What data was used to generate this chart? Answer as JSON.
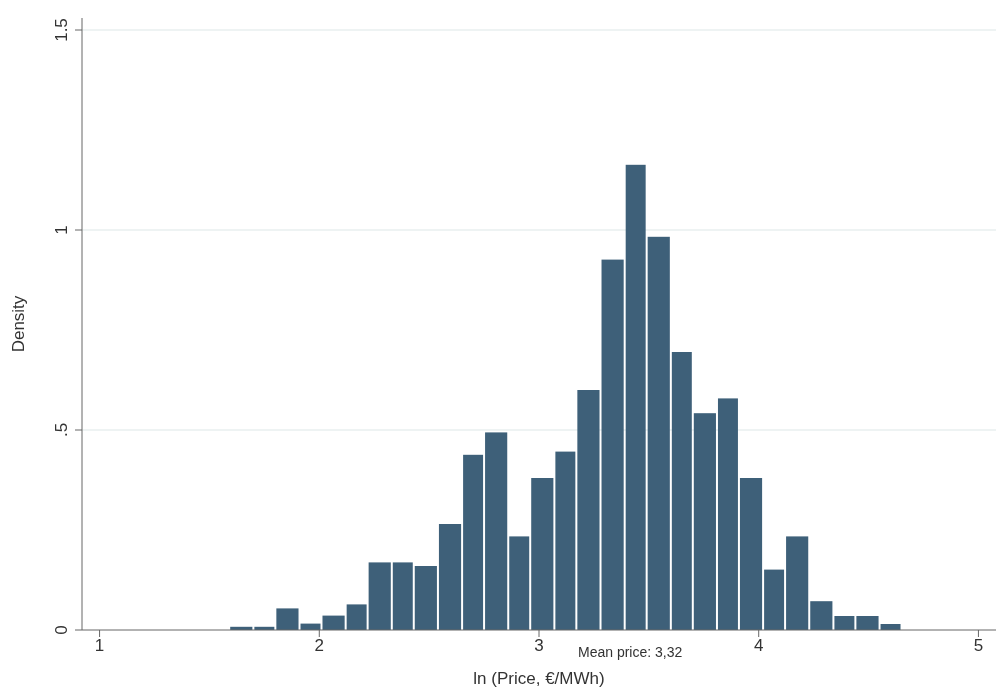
{
  "chart_data": {
    "type": "histogram",
    "xlabel": "ln (Price, €/MWh)",
    "ylabel": "Density",
    "color": "#3e6079",
    "bins": [
      1.59,
      1.7,
      1.8,
      1.91,
      2.01,
      2.12,
      2.22,
      2.33,
      2.43,
      2.54,
      2.65,
      2.75,
      2.86,
      2.96,
      3.07,
      3.17,
      3.28,
      3.39,
      3.49,
      3.6,
      3.7,
      3.81,
      3.91,
      4.02,
      4.12,
      4.23,
      4.34,
      4.44,
      4.55,
      4.65
    ],
    "values": [
      0.008,
      0.008,
      0.054,
      0.016,
      0.036,
      0.064,
      0.169,
      0.169,
      0.16,
      0.265,
      0.438,
      0.494,
      0.234,
      0.38,
      0.446,
      0.6,
      0.926,
      1.163,
      0.983,
      0.695,
      0.542,
      0.579,
      0.38,
      0.151,
      0.234,
      0.072,
      0.035,
      0.035,
      0.015
    ],
    "xlim": [
      0.92,
      5.08
    ],
    "xticks": [
      1,
      2,
      3,
      4,
      5
    ],
    "ylim": [
      0,
      1.53
    ],
    "yticks": [
      0,
      {
        "value": 0.5,
        "label": ".5"
      },
      1,
      1.5
    ],
    "grid": "y",
    "annotations": [
      "Mean price: 3,32"
    ]
  }
}
